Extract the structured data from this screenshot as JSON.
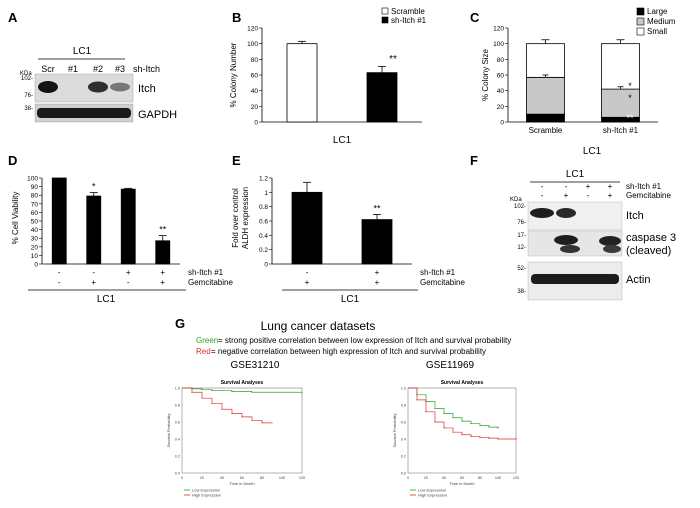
{
  "panels": {
    "A": {
      "letter": "A",
      "group": "LC1",
      "lanes": [
        "Scr",
        "#1",
        "#2",
        "#3"
      ],
      "lane_header": "sh-Itch",
      "kda": "KDa",
      "markers": [
        "102-",
        "76-",
        "38-"
      ],
      "blots": [
        "Itch",
        "GAPDH"
      ],
      "itch_band_intensity": [
        1.0,
        0.0,
        0.85,
        0.45
      ]
    },
    "B": {
      "letter": "B",
      "xlabel": "LC1",
      "ylabel": "% Colony Number",
      "sig": "**"
    },
    "C": {
      "letter": "C",
      "xlabel": "LC1",
      "ylabel": "% Colony Size",
      "sig_small": "*",
      "sig_medium": "*",
      "sig_large": "**"
    },
    "D": {
      "letter": "D",
      "ylabel": "% Cell Viability",
      "sig": [
        "",
        "*",
        "",
        "**"
      ],
      "row1_label": "sh-Itch #1",
      "row2_label": "Gemcitabine",
      "row1": [
        "-",
        "-",
        "+",
        "+"
      ],
      "row2": [
        "-",
        "+",
        "-",
        "+"
      ],
      "group": "LC1"
    },
    "E": {
      "letter": "E",
      "ylabel_line1": "Fold over control",
      "ylabel_line2": "ALDH expression",
      "sig": [
        "",
        "**"
      ],
      "row1_label": "sh-Itch #1",
      "row2_label": "Gemcitabine",
      "row1": [
        "-",
        "+"
      ],
      "row2": [
        "+",
        "+"
      ],
      "group": "LC1"
    },
    "F": {
      "letter": "F",
      "group": "LC1",
      "row1_label": "sh-Itch #1",
      "row2_label": "Gemcitabine",
      "row1": [
        "-",
        "-",
        "+",
        "+"
      ],
      "row2": [
        "-",
        "+",
        "-",
        "+"
      ],
      "kda": "KDa",
      "markers": [
        "102-",
        "76-",
        "17-",
        "12-",
        "52-",
        "38-"
      ],
      "blots": [
        "Itch",
        "caspase 3",
        "(cleaved)",
        "Actin"
      ]
    },
    "G": {
      "letter": "G",
      "title": "Lung cancer datasets",
      "green_word": "Green",
      "green_text": "= strong positive correlation between low expression of Itch and survival probability",
      "red_word": "Red",
      "red_text": "= negative correlation between high expression of Itch and survival probability",
      "colors": {
        "low": "#2ca02c",
        "high": "#e03030"
      }
    }
  },
  "chart_data": [
    {
      "type": "bar",
      "panel": "B",
      "categories": [
        "Scramble",
        "sh-Itch #1"
      ],
      "values": [
        100,
        63
      ],
      "errors": [
        3,
        8
      ],
      "colors": [
        "#ffffff",
        "#000000"
      ],
      "legend": [
        "Scramble",
        "sh-Itch #1"
      ],
      "xlabel": "LC1",
      "ylabel": "% Colony Number",
      "ylim": [
        0,
        120
      ],
      "yticks": [
        0,
        20,
        40,
        60,
        80,
        100,
        120
      ]
    },
    {
      "type": "bar",
      "panel": "C",
      "stacked": true,
      "categories": [
        "Scramble",
        "sh-Itch #1"
      ],
      "series": [
        {
          "name": "Large",
          "values": [
            10,
            6
          ],
          "color": "#000000"
        },
        {
          "name": "Medium",
          "values": [
            47,
            36
          ],
          "color": "#c8c8c8"
        },
        {
          "name": "Small",
          "values": [
            43,
            58
          ],
          "color": "#ffffff"
        }
      ],
      "errors_top": [
        5,
        5
      ],
      "errors_mid": [
        3,
        3
      ],
      "xlabel": "LC1",
      "ylabel": "% Colony Size",
      "ylim": [
        0,
        120
      ],
      "yticks": [
        0,
        20,
        40,
        60,
        80,
        100,
        120
      ]
    },
    {
      "type": "bar",
      "panel": "D",
      "categories": [
        "1",
        "2",
        "3",
        "4"
      ],
      "values": [
        100,
        79,
        87,
        27
      ],
      "errors": [
        0,
        4,
        1,
        6
      ],
      "ylabel": "% Cell Viability",
      "ylim": [
        0,
        100
      ],
      "yticks": [
        0,
        10,
        20,
        30,
        40,
        50,
        60,
        70,
        80,
        90,
        100
      ]
    },
    {
      "type": "bar",
      "panel": "E",
      "categories": [
        "1",
        "2"
      ],
      "values": [
        1.0,
        0.62
      ],
      "errors": [
        0.14,
        0.07
      ],
      "ylabel": "Fold over control ALDH expression",
      "ylim": [
        0,
        1.2
      ],
      "yticks": [
        0,
        0.2,
        0.4,
        0.6,
        0.8,
        1,
        1.2
      ]
    },
    {
      "type": "line",
      "panel": "G1",
      "dataset": "GSE31210",
      "title": "Survival Analyses",
      "xlabel": "Time in Month",
      "ylabel": "Survival Probability",
      "xlim": [
        0,
        120
      ],
      "ylim": [
        0,
        1
      ],
      "xticks": [
        0,
        20,
        40,
        60,
        80,
        100,
        120
      ],
      "yticks": [
        0,
        0.2,
        0.4,
        0.6,
        0.8,
        1.0
      ],
      "legend": [
        "Low Expression",
        "High Expression"
      ],
      "series": [
        {
          "name": "Low Expression",
          "x": [
            0,
            10,
            20,
            30,
            40,
            50,
            60,
            70,
            80,
            90,
            100,
            110,
            120
          ],
          "y": [
            1.0,
            0.99,
            0.98,
            0.97,
            0.97,
            0.96,
            0.96,
            0.95,
            0.95,
            0.95,
            0.95,
            0.95,
            0.95
          ]
        },
        {
          "name": "High Expression",
          "x": [
            0,
            10,
            20,
            30,
            40,
            50,
            60,
            70,
            80,
            90
          ],
          "y": [
            1.0,
            0.95,
            0.88,
            0.82,
            0.75,
            0.7,
            0.66,
            0.62,
            0.59,
            0.59
          ]
        }
      ]
    },
    {
      "type": "line",
      "panel": "G2",
      "dataset": "GSE11969",
      "title": "Survival Analyses",
      "xlabel": "Time in Month",
      "ylabel": "Survival Probability",
      "xlim": [
        0,
        120
      ],
      "ylim": [
        0,
        1
      ],
      "xticks": [
        0,
        20,
        40,
        60,
        80,
        100,
        120
      ],
      "yticks": [
        0,
        0.2,
        0.4,
        0.6,
        0.8,
        1.0
      ],
      "legend": [
        "Low Expression",
        "High Expression"
      ],
      "series": [
        {
          "name": "Low Expression",
          "x": [
            0,
            10,
            20,
            30,
            40,
            50,
            60,
            70,
            80,
            90,
            100
          ],
          "y": [
            1.0,
            0.92,
            0.84,
            0.76,
            0.7,
            0.65,
            0.61,
            0.58,
            0.56,
            0.54,
            0.53
          ]
        },
        {
          "name": "High Expression",
          "x": [
            0,
            10,
            20,
            30,
            40,
            50,
            60,
            70,
            80,
            90,
            100,
            110,
            120
          ],
          "y": [
            1.0,
            0.86,
            0.72,
            0.6,
            0.53,
            0.48,
            0.45,
            0.43,
            0.42,
            0.41,
            0.4,
            0.4,
            0.4
          ]
        }
      ]
    }
  ]
}
